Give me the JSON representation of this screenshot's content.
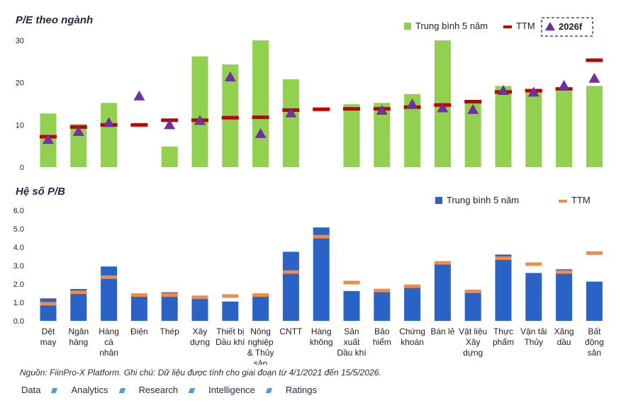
{
  "chart_data": [
    {
      "type": "bar",
      "title": "P/E theo ngành",
      "ylim": [
        0,
        30
      ],
      "yticks": [
        0,
        10,
        20,
        30
      ],
      "legend_position": "top-right",
      "categories": [
        "Dệt may",
        "Ngân hàng",
        "Hàng cá nhân",
        "Điện",
        "Thép",
        "Xây dựng",
        "Thiết bị Dầu khí",
        "Nông nghiệp & Thủy sản",
        "CNTT",
        "Hàng không",
        "Sản xuất Dầu khí",
        "Bảo hiểm",
        "Chứng khoán",
        "Bán lẻ",
        "Vật liệu Xây dựng",
        "Thực phẩm",
        "Vận tải Thủy",
        "Xăng dầu",
        "Bất động sản"
      ],
      "series": [
        {
          "name": "Trung bình 5 năm",
          "kind": "bar",
          "color": "#92d050",
          "values": [
            12.7,
            10.2,
            15.2,
            null,
            4.9,
            26.2,
            24.3,
            30.0,
            20.8,
            null,
            14.9,
            15.2,
            17.3,
            30.0,
            15.1,
            19.2,
            18.3,
            18.0,
            19.2
          ]
        },
        {
          "name": "TTM",
          "kind": "dash",
          "color": "#c00000",
          "values": [
            7.2,
            9.5,
            10.0,
            10.0,
            11.1,
            11.1,
            11.7,
            11.8,
            13.5,
            13.7,
            13.8,
            13.8,
            14.2,
            14.7,
            15.5,
            17.8,
            18.1,
            18.5,
            25.3
          ]
        },
        {
          "name": "2026f",
          "kind": "triangle",
          "color": "#7030a0",
          "values": [
            6.5,
            8.4,
            10.5,
            16.8,
            10.0,
            11.0,
            21.3,
            7.9,
            12.8,
            null,
            null,
            13.4,
            14.9,
            14.0,
            13.6,
            18.1,
            17.7,
            19.3,
            21.0
          ]
        }
      ]
    },
    {
      "type": "bar",
      "title": "Hệ số P/B",
      "ylim": [
        0,
        6
      ],
      "yticks": [
        "0.0",
        "1.0",
        "2.0",
        "3.0",
        "4.0",
        "5.0",
        "6.0"
      ],
      "legend_position": "top-right",
      "categories": [
        "Dệt may",
        "Ngân hàng",
        "Hàng cá nhân",
        "Điện",
        "Thép",
        "Xây dựng",
        "Thiết bị Dầu khí",
        "Nông nghiệp & Thủy sản",
        "CNTT",
        "Hàng không",
        "Sản xuất Dầu khí",
        "Bảo hiểm",
        "Chứng khoán",
        "Bán lẻ",
        "Vật liệu Xây dựng",
        "Thực phẩm",
        "Vận tải Thủy",
        "Xăng dầu",
        "Bất động sản"
      ],
      "series": [
        {
          "name": "Trung bình 5 năm",
          "kind": "bar",
          "color": "#2a62c6",
          "values": [
            1.22,
            1.73,
            2.95,
            1.37,
            1.55,
            1.35,
            1.05,
            1.35,
            3.75,
            5.07,
            1.62,
            1.63,
            1.83,
            3.22,
            1.57,
            3.6,
            2.6,
            2.8,
            2.13
          ]
        },
        {
          "name": "TTM",
          "kind": "dash",
          "color": "#f08c4a",
          "values": [
            0.93,
            1.55,
            2.37,
            1.4,
            1.4,
            1.28,
            1.35,
            1.4,
            2.65,
            4.57,
            2.08,
            1.65,
            1.88,
            3.15,
            1.6,
            3.4,
            3.08,
            2.65,
            3.68
          ]
        }
      ]
    }
  ],
  "category_lines": [
    [
      "Dệt",
      "may"
    ],
    [
      "Ngân",
      "hàng"
    ],
    [
      "Hàng",
      "cá",
      "nhân"
    ],
    [
      "Điện"
    ],
    [
      "Thép"
    ],
    [
      "Xây",
      "dựng"
    ],
    [
      "Thiết bị",
      "Dầu khí"
    ],
    [
      "Nông",
      "nghiệp",
      "& Thủy",
      "sản"
    ],
    [
      "CNTT"
    ],
    [
      "Hàng",
      "không"
    ],
    [
      "Sản",
      "xuất",
      "Dầu khí"
    ],
    [
      "Bảo",
      "hiểm"
    ],
    [
      "Chứng",
      "khoán"
    ],
    [
      "Bán lẻ"
    ],
    [
      "Vật liệu",
      "Xây",
      "dựng"
    ],
    [
      "Thực",
      "phẩm"
    ],
    [
      "Vận tải",
      "Thủy"
    ],
    [
      "Xăng",
      "dầu"
    ],
    [
      "Bất",
      "động",
      "sản"
    ]
  ],
  "source_note": "Nguồn: FiinPro-X Platform. Ghi chú: Dữ liệu được tính cho giai đoạn từ 4/1/2021 đến 15/5/2026.",
  "footer_nav": [
    "Data",
    "Analytics",
    "Research",
    "Intelligence",
    "Ratings"
  ]
}
